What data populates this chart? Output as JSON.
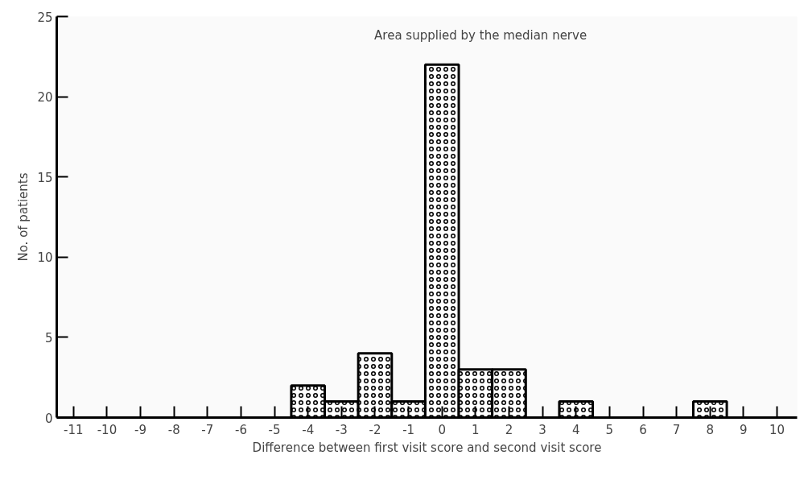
{
  "chart_data": {
    "type": "histogram",
    "title": "Area supplied by the median nerve",
    "xlabel": "Difference between first visit score and second visit score",
    "ylabel": "No. of patients",
    "bins": [
      -11.5,
      -10.5,
      -9.5,
      -8.5,
      -7.5,
      -6.5,
      -5.5,
      -4.5,
      -3.5,
      -2.5,
      -1.5,
      -0.5,
      0.5,
      1.5,
      2.5,
      3.5,
      4.5,
      5.5,
      6.5,
      7.5,
      8.5,
      9.5,
      10.5
    ],
    "values": [
      0,
      0,
      0,
      0,
      0,
      0,
      0,
      2,
      1,
      4,
      1,
      22,
      3,
      3,
      0,
      1,
      0,
      0,
      0,
      1,
      0,
      0
    ],
    "color": "#000000",
    "xlim": [
      -11.5,
      10.6
    ],
    "ylim": [
      0,
      25
    ],
    "xticks": [
      -11,
      -10,
      -9,
      -8,
      -7,
      -6,
      -5,
      -4,
      -3,
      -2,
      -1,
      0,
      1,
      2,
      3,
      4,
      5,
      6,
      7,
      8,
      9,
      10
    ],
    "yticks": [
      0,
      5,
      10,
      15,
      20,
      25
    ],
    "grid": false
  }
}
